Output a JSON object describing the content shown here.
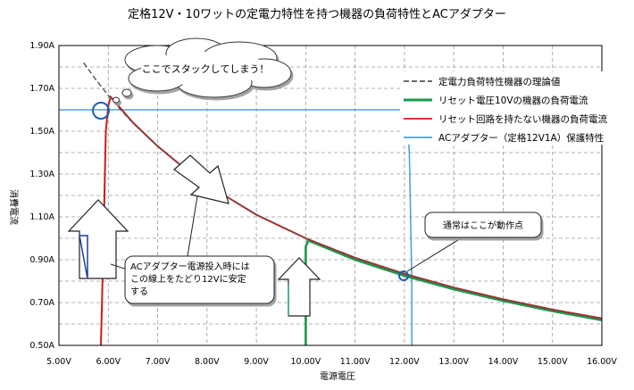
{
  "chart_data": {
    "type": "line",
    "title": "定格12V・10ワットの定電力特性を持つ機器の負荷特性とACアダプター",
    "xlabel": "電源電圧",
    "ylabel": "消費電流",
    "xlim": [
      5.0,
      16.0
    ],
    "ylim": [
      0.5,
      1.9
    ],
    "x_ticks": [
      "5.00V",
      "6.00V",
      "7.00V",
      "8.00V",
      "9.00V",
      "10.00V",
      "11.00V",
      "12.00V",
      "13.00V",
      "14.00V",
      "15.00V",
      "16.00V"
    ],
    "y_ticks": [
      "1.90A",
      "1.70A",
      "1.50A",
      "1.30A",
      "1.10A",
      "0.90A",
      "0.70A",
      "0.50A"
    ],
    "grid": true,
    "legend_position": "top-right",
    "series": [
      {
        "name": "定電力負荷特性機器の理論値",
        "color": "#555555",
        "style": "dashed",
        "x": [
          5.5,
          5.75,
          6.0,
          6.25,
          6.5,
          7.0,
          7.5,
          8.0,
          9.0,
          10.0,
          11.0,
          12.0,
          13.0,
          14.0,
          15.0,
          16.0
        ],
        "y": [
          1.82,
          1.74,
          1.667,
          1.6,
          1.538,
          1.429,
          1.333,
          1.25,
          1.111,
          1.0,
          0.909,
          0.833,
          0.769,
          0.714,
          0.667,
          0.625
        ]
      },
      {
        "name": "リセット電圧10Vの機器の負荷電流",
        "color": "#1a9a4a",
        "style": "solid",
        "x": [
          10.0,
          10.0,
          10.0,
          10.05,
          10.1,
          11.0,
          12.0,
          13.0,
          14.0,
          15.0,
          16.0
        ],
        "y": [
          0.5,
          0.8,
          0.96,
          0.99,
          0.985,
          0.9,
          0.825,
          0.762,
          0.708,
          0.66,
          0.618
        ]
      },
      {
        "name": "リセット回路を持たない機器の負荷電流",
        "color": "#cc1b1b",
        "style": "solid",
        "x": [
          5.85,
          5.9,
          5.95,
          6.0,
          6.05,
          6.5,
          7.0,
          7.5,
          8.0,
          9.0,
          10.0,
          11.0,
          12.0,
          13.0,
          14.0,
          15.0,
          16.0
        ],
        "y": [
          0.5,
          0.95,
          1.5,
          1.62,
          1.66,
          1.54,
          1.43,
          1.335,
          1.25,
          1.11,
          1.0,
          0.909,
          0.834,
          0.77,
          0.715,
          0.667,
          0.626
        ]
      },
      {
        "name": "ACアダプター（定格12V1A）保護特性",
        "color": "#4fa3d8",
        "style": "solid",
        "x": [
          5.0,
          12.0,
          12.05,
          12.1,
          12.15,
          12.15
        ],
        "y": [
          1.6,
          1.6,
          1.58,
          1.4,
          0.8,
          0.5
        ]
      }
    ],
    "annotations": [
      {
        "text": "ここでスタックしてしまう！"
      },
      {
        "text": "通常はここが動作点"
      },
      {
        "text": "ACアダプター電源投入時には この線上をたどり12Vに安定 する"
      }
    ]
  }
}
